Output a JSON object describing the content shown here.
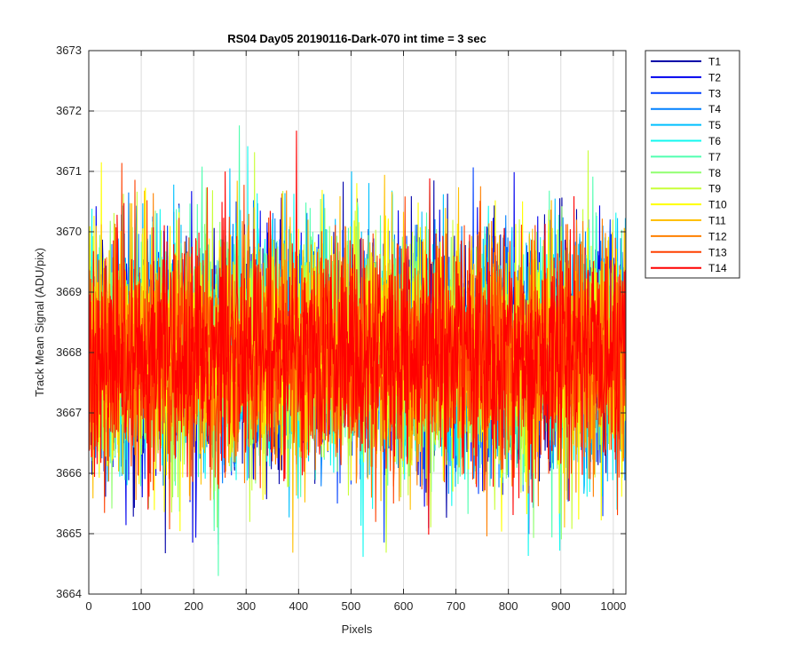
{
  "chart_data": {
    "type": "line",
    "title": "RS04 Day05 20190116-Dark-070 int time = 3 sec",
    "xlabel": "Pixels",
    "ylabel": "Track Mean Signal (ADU/pix)",
    "xlim": [
      0,
      1024
    ],
    "ylim": [
      3664,
      3673
    ],
    "xticks": [
      0,
      100,
      200,
      300,
      400,
      500,
      600,
      700,
      800,
      900,
      1000
    ],
    "yticks": [
      3664,
      3665,
      3666,
      3667,
      3668,
      3669,
      3670,
      3671,
      3672,
      3673
    ],
    "grid": true,
    "legend_position": "outside-top-right",
    "n_points": 1024,
    "noise_model": {
      "mean": 3668.0,
      "std_approx": 1.0,
      "note": "each series is per-pixel dark noise fluctuating roughly between 3665 and 3671.5"
    },
    "series": [
      {
        "name": "T1",
        "color": "#0000a8"
      },
      {
        "name": "T2",
        "color": "#0000ee"
      },
      {
        "name": "T3",
        "color": "#0040ff"
      },
      {
        "name": "T4",
        "color": "#0080ff"
      },
      {
        "name": "T5",
        "color": "#00c0ff"
      },
      {
        "name": "T6",
        "color": "#10f8f0"
      },
      {
        "name": "T7",
        "color": "#50ffb0"
      },
      {
        "name": "T8",
        "color": "#90ff70"
      },
      {
        "name": "T9",
        "color": "#c8ff38"
      },
      {
        "name": "T10",
        "color": "#ffff00"
      },
      {
        "name": "T11",
        "color": "#ffc000"
      },
      {
        "name": "T12",
        "color": "#ff8000"
      },
      {
        "name": "T13",
        "color": "#ff4000"
      },
      {
        "name": "T14",
        "color": "#ff0000"
      }
    ]
  }
}
